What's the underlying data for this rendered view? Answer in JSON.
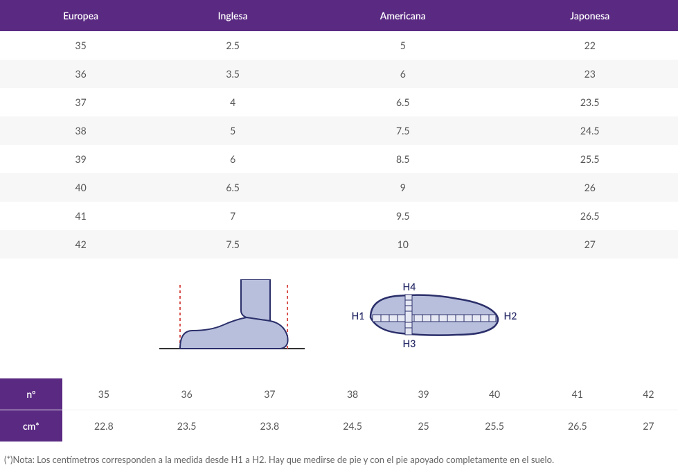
{
  "colors": {
    "header_bg": "#5a2a82",
    "header_text": "#ffffff",
    "row_even_bg": "#f7f7f7",
    "row_odd_bg": "#ffffff",
    "text": "#555555",
    "diagram_stroke": "#2b2f6a",
    "diagram_fill": "#b7bfdc",
    "guide_line": "#d9534f",
    "baseline": "#333333"
  },
  "size_table": {
    "headers": [
      "Europea",
      "Inglesa",
      "Americana",
      "Japonesa"
    ],
    "rows": [
      [
        "35",
        "2.5",
        "5",
        "22"
      ],
      [
        "36",
        "3.5",
        "6",
        "23"
      ],
      [
        "37",
        "4",
        "6.5",
        "23.5"
      ],
      [
        "38",
        "5",
        "7.5",
        "24.5"
      ],
      [
        "39",
        "6",
        "8.5",
        "25.5"
      ],
      [
        "40",
        "6.5",
        "9",
        "26"
      ],
      [
        "41",
        "7",
        "9.5",
        "26.5"
      ],
      [
        "42",
        "7.5",
        "10",
        "27"
      ]
    ]
  },
  "diagram": {
    "labels": {
      "h1": "H1",
      "h2": "H2",
      "h3": "H3",
      "h4": "H4"
    }
  },
  "cm_table": {
    "row_labels": [
      "nº",
      "cm*"
    ],
    "sizes": [
      "35",
      "36",
      "37",
      "38",
      "39",
      "40",
      "41",
      "42"
    ],
    "cms": [
      "22.8",
      "23.5",
      "23.8",
      "24.5",
      "25",
      "25.5",
      "26.5",
      "27"
    ]
  },
  "note": "(*)Nota: Los centímetros corresponden a la medida desde H1 a H2. Hay que medirse de pie y con el pie apoyado completamente en el suelo."
}
